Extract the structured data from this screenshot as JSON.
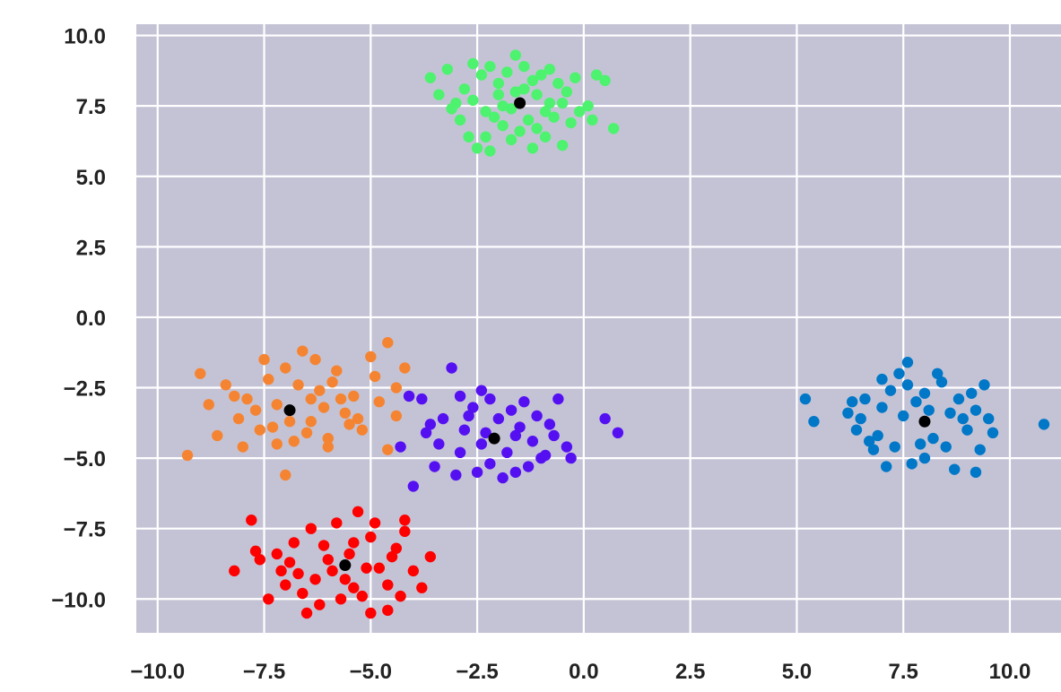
{
  "colors": {
    "plot_background": "#c4c3d6",
    "grid": "#ffffff",
    "centroid": "#000000"
  },
  "chart_data": {
    "type": "scatter",
    "title": "",
    "xlabel": "",
    "ylabel": "",
    "xlim": [
      -10.5,
      11.2
    ],
    "ylim": [
      -11.2,
      10.4
    ],
    "grid": true,
    "legend": "none",
    "x_ticks": [
      -10.0,
      -7.5,
      -5.0,
      -2.5,
      0.0,
      2.5,
      5.0,
      7.5,
      10.0
    ],
    "x_tick_labels": [
      "−10.0",
      "−7.5",
      "−5.0",
      "−2.5",
      "0.0",
      "2.5",
      "5.0",
      "7.5",
      "10.0"
    ],
    "y_ticks": [
      10.0,
      7.5,
      5.0,
      2.5,
      0.0,
      -2.5,
      -5.0,
      -7.5,
      -10.0
    ],
    "y_tick_labels": [
      "10.0",
      "7.5",
      "5.0",
      "2.5",
      "0.0",
      "−2.5",
      "−5.0",
      "−7.5",
      "−10.0"
    ],
    "clusters": [
      {
        "color": "#4df26e",
        "centroid": [
          -1.5,
          7.6
        ],
        "points": [
          [
            -3.6,
            8.5
          ],
          [
            -3.2,
            8.8
          ],
          [
            -3.4,
            7.9
          ],
          [
            -3.0,
            7.6
          ],
          [
            -2.8,
            8.1
          ],
          [
            -2.6,
            9.0
          ],
          [
            -2.4,
            8.6
          ],
          [
            -2.2,
            8.9
          ],
          [
            -2.0,
            8.3
          ],
          [
            -1.8,
            8.7
          ],
          [
            -1.6,
            9.3
          ],
          [
            -1.4,
            8.9
          ],
          [
            -1.2,
            8.4
          ],
          [
            -1.0,
            8.6
          ],
          [
            -0.8,
            8.8
          ],
          [
            -0.6,
            8.3
          ],
          [
            -0.4,
            8.0
          ],
          [
            -0.2,
            8.5
          ],
          [
            0.1,
            7.5
          ],
          [
            0.3,
            8.6
          ],
          [
            0.5,
            8.4
          ],
          [
            0.7,
            6.7
          ],
          [
            0.2,
            7.0
          ],
          [
            -0.1,
            7.3
          ],
          [
            -0.3,
            6.9
          ],
          [
            -0.5,
            7.6
          ],
          [
            -0.7,
            7.1
          ],
          [
            -0.9,
            6.4
          ],
          [
            -1.1,
            6.7
          ],
          [
            -1.3,
            7.0
          ],
          [
            -1.5,
            6.6
          ],
          [
            -1.7,
            6.3
          ],
          [
            -1.9,
            6.8
          ],
          [
            -2.1,
            7.1
          ],
          [
            -2.3,
            6.4
          ],
          [
            -2.5,
            6.0
          ],
          [
            -2.7,
            6.4
          ],
          [
            -2.9,
            7.0
          ],
          [
            -3.1,
            7.4
          ],
          [
            -2.6,
            7.7
          ],
          [
            -2.3,
            7.3
          ],
          [
            -2.0,
            7.9
          ],
          [
            -1.7,
            7.4
          ],
          [
            -1.4,
            8.1
          ],
          [
            -1.1,
            7.9
          ],
          [
            -0.8,
            7.6
          ],
          [
            -0.5,
            6.1
          ],
          [
            -1.2,
            6.0
          ],
          [
            -2.2,
            5.9
          ],
          [
            -1.6,
            8.0
          ],
          [
            -1.9,
            7.5
          ],
          [
            -0.9,
            7.3
          ]
        ]
      },
      {
        "color": "#f58432",
        "centroid": [
          -6.9,
          -3.3
        ],
        "points": [
          [
            -9.3,
            -4.9
          ],
          [
            -9.0,
            -2.0
          ],
          [
            -8.6,
            -4.2
          ],
          [
            -8.4,
            -2.4
          ],
          [
            -8.1,
            -3.6
          ],
          [
            -7.9,
            -2.9
          ],
          [
            -7.6,
            -4.0
          ],
          [
            -7.4,
            -2.2
          ],
          [
            -7.2,
            -3.1
          ],
          [
            -7.0,
            -1.8
          ],
          [
            -6.8,
            -4.4
          ],
          [
            -6.6,
            -1.2
          ],
          [
            -6.4,
            -3.7
          ],
          [
            -6.2,
            -2.6
          ],
          [
            -6.0,
            -4.3
          ],
          [
            -5.8,
            -1.9
          ],
          [
            -5.6,
            -3.4
          ],
          [
            -5.4,
            -2.8
          ],
          [
            -5.2,
            -4.0
          ],
          [
            -5.0,
            -1.4
          ],
          [
            -4.8,
            -3.0
          ],
          [
            -4.6,
            -4.7
          ],
          [
            -4.4,
            -2.5
          ],
          [
            -4.2,
            -1.8
          ],
          [
            -4.6,
            -0.9
          ],
          [
            -5.5,
            -3.8
          ],
          [
            -6.1,
            -3.2
          ],
          [
            -6.5,
            -4.1
          ],
          [
            -6.9,
            -3.7
          ],
          [
            -7.3,
            -3.9
          ],
          [
            -7.7,
            -3.3
          ],
          [
            -8.2,
            -2.8
          ],
          [
            -7.0,
            -5.6
          ],
          [
            -5.9,
            -2.3
          ],
          [
            -6.3,
            -1.5
          ],
          [
            -7.5,
            -1.5
          ],
          [
            -8.8,
            -3.1
          ],
          [
            -6.7,
            -2.4
          ],
          [
            -5.3,
            -3.6
          ],
          [
            -4.9,
            -2.1
          ],
          [
            -6.0,
            -4.6
          ],
          [
            -7.2,
            -4.5
          ],
          [
            -8.0,
            -4.6
          ],
          [
            -4.4,
            -3.5
          ],
          [
            -5.7,
            -2.9
          ],
          [
            -6.4,
            -2.9
          ]
        ]
      },
      {
        "color": "#5510f2",
        "centroid": [
          -2.1,
          -4.3
        ],
        "points": [
          [
            -4.1,
            -2.8
          ],
          [
            -3.8,
            -2.9
          ],
          [
            -3.6,
            -3.8
          ],
          [
            -3.4,
            -4.5
          ],
          [
            -3.1,
            -1.8
          ],
          [
            -3.0,
            -5.6
          ],
          [
            -2.8,
            -4.0
          ],
          [
            -2.6,
            -3.2
          ],
          [
            -2.4,
            -2.6
          ],
          [
            -2.2,
            -5.2
          ],
          [
            -2.0,
            -3.6
          ],
          [
            -1.8,
            -4.8
          ],
          [
            -1.6,
            -5.5
          ],
          [
            -1.4,
            -3.0
          ],
          [
            -1.2,
            -4.4
          ],
          [
            -1.0,
            -5.0
          ],
          [
            -0.8,
            -3.8
          ],
          [
            -0.6,
            -2.9
          ],
          [
            -0.4,
            -4.6
          ],
          [
            -0.3,
            -5.0
          ],
          [
            0.5,
            -3.6
          ],
          [
            0.8,
            -4.1
          ],
          [
            -4.3,
            -4.6
          ],
          [
            -4.0,
            -6.0
          ],
          [
            -3.3,
            -3.6
          ],
          [
            -2.9,
            -4.8
          ],
          [
            -2.5,
            -5.5
          ],
          [
            -2.3,
            -4.1
          ],
          [
            -1.9,
            -5.7
          ],
          [
            -1.5,
            -3.9
          ],
          [
            -1.1,
            -3.5
          ],
          [
            -0.9,
            -4.9
          ],
          [
            -2.7,
            -3.5
          ],
          [
            -3.5,
            -5.3
          ],
          [
            -1.7,
            -3.3
          ],
          [
            -2.2,
            -2.9
          ],
          [
            -1.3,
            -5.3
          ],
          [
            -3.7,
            -4.1
          ],
          [
            -2.4,
            -4.5
          ],
          [
            -1.6,
            -4.2
          ],
          [
            -0.7,
            -4.2
          ],
          [
            -2.9,
            -2.8
          ]
        ]
      },
      {
        "color": "#ff0000",
        "centroid": [
          -5.6,
          -8.8
        ],
        "points": [
          [
            -8.2,
            -9.0
          ],
          [
            -7.8,
            -7.2
          ],
          [
            -7.6,
            -8.6
          ],
          [
            -7.4,
            -10.0
          ],
          [
            -7.2,
            -8.4
          ],
          [
            -7.0,
            -9.5
          ],
          [
            -6.8,
            -8.0
          ],
          [
            -6.6,
            -9.8
          ],
          [
            -6.4,
            -7.5
          ],
          [
            -6.2,
            -10.2
          ],
          [
            -6.0,
            -8.6
          ],
          [
            -5.8,
            -7.3
          ],
          [
            -5.6,
            -9.3
          ],
          [
            -5.4,
            -8.0
          ],
          [
            -5.2,
            -9.9
          ],
          [
            -5.0,
            -7.8
          ],
          [
            -4.8,
            -8.9
          ],
          [
            -4.6,
            -9.5
          ],
          [
            -4.4,
            -8.2
          ],
          [
            -4.2,
            -7.6
          ],
          [
            -4.0,
            -9.0
          ],
          [
            -3.8,
            -9.6
          ],
          [
            -3.6,
            -8.5
          ],
          [
            -4.6,
            -10.4
          ],
          [
            -5.3,
            -6.9
          ],
          [
            -5.0,
            -10.5
          ],
          [
            -6.5,
            -10.5
          ],
          [
            -5.9,
            -9.0
          ],
          [
            -5.5,
            -8.4
          ],
          [
            -5.1,
            -8.9
          ],
          [
            -6.1,
            -8.1
          ],
          [
            -6.9,
            -8.7
          ],
          [
            -7.7,
            -8.3
          ],
          [
            -4.2,
            -7.2
          ],
          [
            -4.9,
            -7.3
          ],
          [
            -5.7,
            -10.0
          ],
          [
            -6.3,
            -9.3
          ],
          [
            -7.1,
            -9.0
          ],
          [
            -4.5,
            -8.5
          ],
          [
            -5.4,
            -9.6
          ],
          [
            -6.7,
            -9.1
          ],
          [
            -4.3,
            -9.9
          ]
        ]
      },
      {
        "color": "#0077c7",
        "centroid": [
          8.0,
          -3.7
        ],
        "points": [
          [
            5.2,
            -2.9
          ],
          [
            5.4,
            -3.7
          ],
          [
            6.2,
            -3.4
          ],
          [
            6.4,
            -4.0
          ],
          [
            6.6,
            -2.9
          ],
          [
            6.8,
            -4.7
          ],
          [
            7.0,
            -3.2
          ],
          [
            7.2,
            -2.6
          ],
          [
            7.4,
            -2.0
          ],
          [
            7.6,
            -1.6
          ],
          [
            7.8,
            -3.0
          ],
          [
            8.0,
            -2.7
          ],
          [
            8.2,
            -4.3
          ],
          [
            8.4,
            -2.3
          ],
          [
            8.6,
            -3.4
          ],
          [
            8.8,
            -2.9
          ],
          [
            9.0,
            -4.0
          ],
          [
            9.2,
            -3.3
          ],
          [
            9.4,
            -2.4
          ],
          [
            9.6,
            -4.1
          ],
          [
            10.8,
            -3.8
          ],
          [
            7.1,
            -5.3
          ],
          [
            7.7,
            -5.2
          ],
          [
            8.7,
            -5.4
          ],
          [
            9.2,
            -5.5
          ],
          [
            6.5,
            -3.6
          ],
          [
            6.9,
            -4.2
          ],
          [
            7.3,
            -4.6
          ],
          [
            7.5,
            -3.5
          ],
          [
            7.9,
            -4.5
          ],
          [
            8.1,
            -3.3
          ],
          [
            8.5,
            -4.6
          ],
          [
            8.9,
            -3.6
          ],
          [
            9.3,
            -4.7
          ],
          [
            9.5,
            -3.6
          ],
          [
            7.0,
            -2.2
          ],
          [
            7.6,
            -2.4
          ],
          [
            8.3,
            -2.0
          ],
          [
            6.3,
            -3.0
          ],
          [
            9.1,
            -2.7
          ],
          [
            8.0,
            -5.0
          ],
          [
            6.7,
            -4.4
          ]
        ]
      }
    ]
  }
}
